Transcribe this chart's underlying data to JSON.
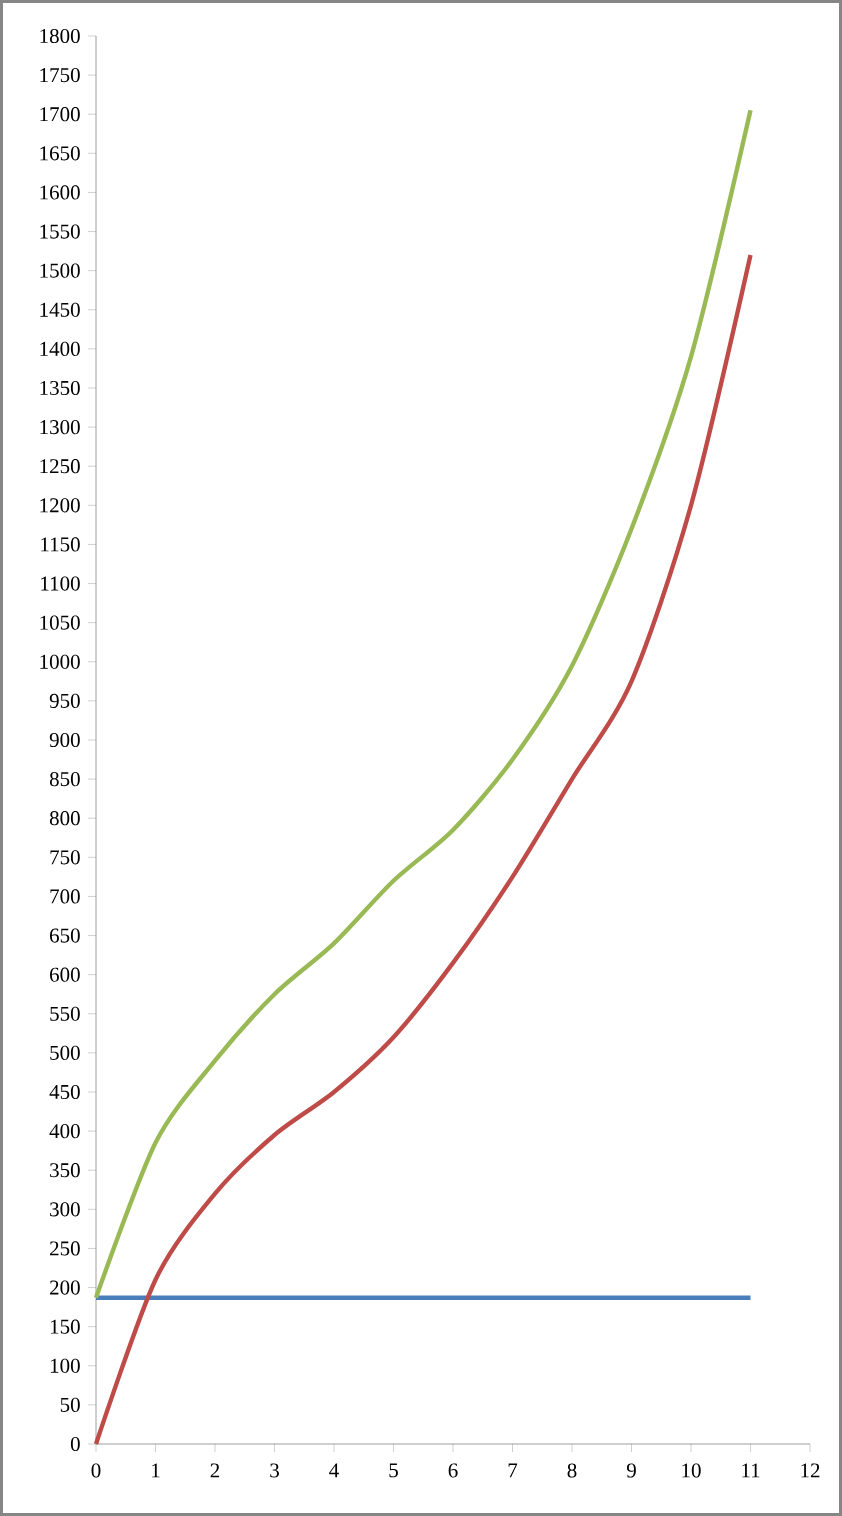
{
  "chart_data": {
    "type": "line",
    "x": [
      0,
      1,
      2,
      3,
      4,
      5,
      6,
      7,
      8,
      9,
      10,
      11
    ],
    "series": [
      {
        "color": "#4a7ebb",
        "values": [
          187,
          187,
          187,
          187,
          187,
          187,
          187,
          187,
          187,
          187,
          187,
          187
        ]
      },
      {
        "color": "#be4b48",
        "values": [
          0,
          210,
          320,
          395,
          450,
          520,
          615,
          725,
          850,
          975,
          1200,
          1520
        ]
      },
      {
        "color": "#98b954",
        "values": [
          187,
          385,
          490,
          575,
          640,
          720,
          785,
          875,
          995,
          1170,
          1390,
          1705
        ]
      }
    ],
    "xlim": [
      0,
      12
    ],
    "ylim": [
      0,
      1800
    ],
    "xticks": [
      0,
      1,
      2,
      3,
      4,
      5,
      6,
      7,
      8,
      9,
      10,
      11,
      12
    ],
    "yticks": [
      0,
      50,
      100,
      150,
      200,
      250,
      300,
      350,
      400,
      450,
      500,
      550,
      600,
      650,
      700,
      750,
      800,
      850,
      900,
      950,
      1000,
      1050,
      1100,
      1150,
      1200,
      1250,
      1300,
      1350,
      1400,
      1450,
      1500,
      1550,
      1600,
      1650,
      1700,
      1750,
      1800
    ],
    "marker": "none",
    "line_style": "solid"
  }
}
